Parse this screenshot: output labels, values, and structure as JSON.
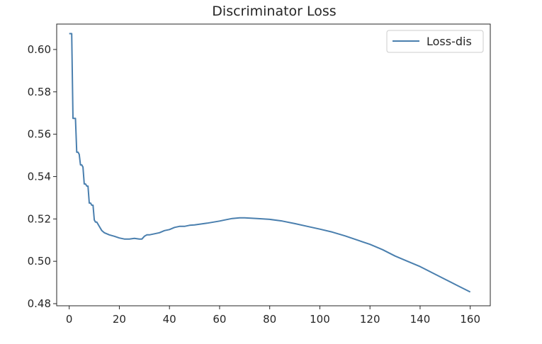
{
  "chart_data": {
    "type": "line",
    "title": "Discriminator Loss",
    "xlabel": "",
    "ylabel": "",
    "xlim": [
      -5,
      168
    ],
    "ylim": [
      0.479,
      0.612
    ],
    "xticks": [
      0,
      20,
      40,
      60,
      80,
      100,
      120,
      140,
      160
    ],
    "yticks": [
      0.48,
      0.5,
      0.52,
      0.54,
      0.56,
      0.58,
      0.6
    ],
    "ytick_labels": [
      "0.48",
      "0.50",
      "0.52",
      "0.54",
      "0.56",
      "0.58",
      "0.60"
    ],
    "grid": false,
    "legend": {
      "placement": "top-right"
    },
    "series": [
      {
        "name": "Loss-dis",
        "color": "#4a7fae",
        "x": [
          0,
          1,
          1.5,
          2,
          2.5,
          3,
          3.5,
          4,
          4.5,
          5,
          5.5,
          6,
          6.5,
          7,
          7.5,
          8,
          8.5,
          9,
          9.5,
          10,
          10.5,
          11,
          12,
          13,
          14,
          15,
          16,
          18,
          20,
          22,
          24,
          26,
          28,
          29,
          30,
          31,
          32,
          34,
          36,
          38,
          40,
          42,
          44,
          46,
          48,
          50,
          55,
          60,
          62,
          65,
          68,
          70,
          75,
          80,
          85,
          90,
          95,
          100,
          105,
          110,
          115,
          120,
          125,
          130,
          135,
          140,
          145,
          150,
          155,
          160
        ],
        "values": [
          0.6075,
          0.6075,
          0.5675,
          0.5675,
          0.5675,
          0.5515,
          0.5515,
          0.5505,
          0.5455,
          0.5455,
          0.5445,
          0.5365,
          0.5365,
          0.5355,
          0.5355,
          0.5275,
          0.5275,
          0.5265,
          0.5265,
          0.5195,
          0.5185,
          0.5185,
          0.5165,
          0.5145,
          0.5135,
          0.513,
          0.5125,
          0.5118,
          0.511,
          0.5105,
          0.5105,
          0.5108,
          0.5105,
          0.5105,
          0.5118,
          0.5125,
          0.5125,
          0.513,
          0.5135,
          0.5145,
          0.515,
          0.516,
          0.5165,
          0.5165,
          0.517,
          0.5172,
          0.518,
          0.519,
          0.5195,
          0.5202,
          0.5205,
          0.5205,
          0.5202,
          0.5198,
          0.519,
          0.5178,
          0.5165,
          0.5152,
          0.5138,
          0.512,
          0.51,
          0.508,
          0.5055,
          0.5025,
          0.5,
          0.4975,
          0.4945,
          0.4915,
          0.4885,
          0.4855
        ]
      }
    ]
  }
}
